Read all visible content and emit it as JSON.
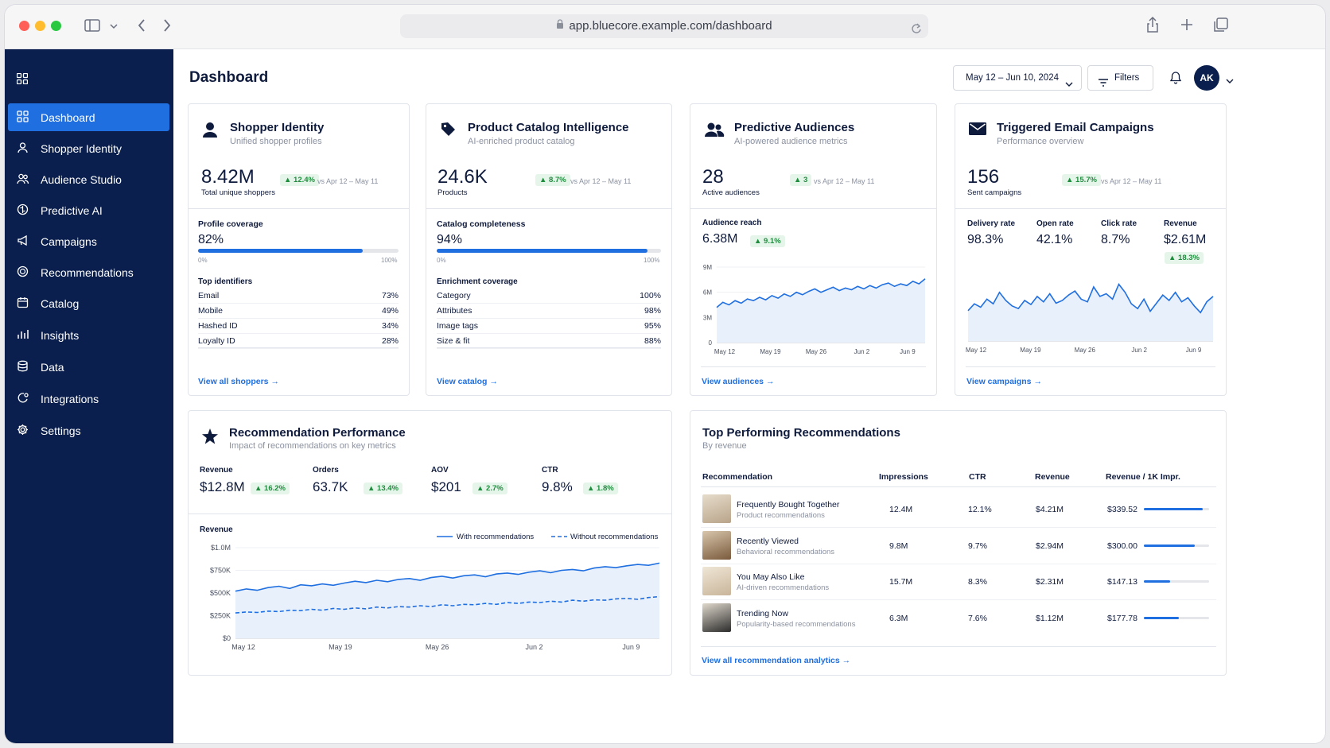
{
  "browser": {
    "url": "app.bluecore.example.com/dashboard"
  },
  "sidebar": {
    "items": [
      {
        "label": "Dashboard",
        "icon": "grid-icon"
      },
      {
        "label": "Shopper Identity",
        "icon": "user-icon"
      },
      {
        "label": "Audience Studio",
        "icon": "users-icon"
      },
      {
        "label": "Predictive AI",
        "icon": "brain-icon"
      },
      {
        "label": "Campaigns",
        "icon": "megaphone-icon"
      },
      {
        "label": "Recommendations",
        "icon": "star-badge-icon"
      },
      {
        "label": "Catalog",
        "icon": "calendar-icon"
      },
      {
        "label": "Insights",
        "icon": "bar-chart-icon"
      },
      {
        "label": "Data",
        "icon": "database-icon"
      },
      {
        "label": "Integrations",
        "icon": "integration-icon"
      },
      {
        "label": "Settings",
        "icon": "gear-icon"
      }
    ]
  },
  "header": {
    "title": "Dashboard",
    "date_range": "May 12 – Jun 10, 2024",
    "filters_label": "Filters",
    "avatar_initials": "AK"
  },
  "colors": {
    "accent": "#1f6fe0",
    "sidebar": "#0a1f4d",
    "positive": "#1e8e3e"
  },
  "shopper_identity": {
    "title": "Shopper Identity",
    "subtitle": "Unified shopper profiles",
    "value": "8.42M",
    "value_label": "Total unique shoppers",
    "change": "▲ 12.4%",
    "compare": "vs Apr 12 – May 11",
    "coverage_label": "Profile coverage",
    "coverage_value": "82%",
    "coverage_fraction": 0.82,
    "range_min": "0%",
    "range_max": "100%",
    "list_title": "Top identifiers",
    "rows": [
      {
        "label": "Email",
        "value": "73%"
      },
      {
        "label": "Mobile",
        "value": "49%"
      },
      {
        "label": "Hashed ID",
        "value": "34%"
      },
      {
        "label": "Loyalty ID",
        "value": "28%"
      }
    ],
    "link": "View all shoppers"
  },
  "catalog": {
    "title": "Product Catalog Intelligence",
    "subtitle": "AI-enriched product catalog",
    "value": "24.6K",
    "value_label": "Products",
    "change": "▲ 8.7%",
    "compare": "vs Apr 12 – May 11",
    "coverage_label": "Catalog completeness",
    "coverage_value": "94%",
    "coverage_fraction": 0.94,
    "range_min": "0%",
    "range_max": "100%",
    "list_title": "Enrichment coverage",
    "rows": [
      {
        "label": "Category",
        "value": "100%"
      },
      {
        "label": "Attributes",
        "value": "98%"
      },
      {
        "label": "Image tags",
        "value": "95%"
      },
      {
        "label": "Size & fit",
        "value": "88%"
      }
    ],
    "link": "View catalog"
  },
  "audiences": {
    "title": "Predictive Audiences",
    "subtitle": "AI-powered audience metrics",
    "value": "28",
    "value_label": "Active audiences",
    "change": "▲ 3",
    "compare": "vs Apr 12 – May 11",
    "reach_label": "Audience reach",
    "reach_value": "6.38M",
    "reach_change": "▲ 9.1%",
    "link": "View audiences"
  },
  "email": {
    "title": "Triggered Email Campaigns",
    "subtitle": "Performance overview",
    "value": "156",
    "value_label": "Sent campaigns",
    "change": "▲ 15.7%",
    "compare": "vs Apr 12 – May 11",
    "metrics": [
      {
        "label": "Delivery rate",
        "value": "98.3%"
      },
      {
        "label": "Open rate",
        "value": "42.1%"
      },
      {
        "label": "Click rate",
        "value": "8.7%"
      },
      {
        "label": "Revenue",
        "value": "$2.61M"
      }
    ],
    "revenue_change": "▲ 18.3%",
    "link": "View campaigns"
  },
  "rec_perf": {
    "title": "Recommendation Performance",
    "subtitle": "Impact of recommendations on key metrics",
    "metrics": [
      {
        "label": "Revenue",
        "value": "$12.8M",
        "change": "▲ 16.2%"
      },
      {
        "label": "Orders",
        "value": "63.7K",
        "change": "▲ 13.4%"
      },
      {
        "label": "AOV",
        "value": "$201",
        "change": "▲ 2.7%"
      },
      {
        "label": "CTR",
        "value": "9.8%",
        "change": "▲ 1.8%"
      }
    ]
  },
  "top_recs": {
    "title": "Top Performing Recommendations",
    "subtitle": "By revenue",
    "columns": [
      "Recommendation",
      "Impressions",
      "CTR",
      "Revenue",
      "Revenue / 1K Impr."
    ],
    "rows": [
      {
        "name": "Frequently Bought Together",
        "desc": "Product recommendations",
        "impressions": "12.4M",
        "ctr": "12.1%",
        "revenue": "$4.21M",
        "rev_per_1k": "$339.52",
        "bar_fraction": 0.9
      },
      {
        "name": "Recently Viewed",
        "desc": "Behavioral recommendations",
        "impressions": "9.8M",
        "ctr": "9.7%",
        "revenue": "$2.94M",
        "rev_per_1k": "$300.00",
        "bar_fraction": 0.78
      },
      {
        "name": "You May Also Like",
        "desc": "AI-driven recommendations",
        "impressions": "15.7M",
        "ctr": "8.3%",
        "revenue": "$2.31M",
        "rev_per_1k": "$147.13",
        "bar_fraction": 0.4
      },
      {
        "name": "Trending Now",
        "desc": "Popularity-based recommendations",
        "impressions": "6.3M",
        "ctr": "7.6%",
        "revenue": "$1.12M",
        "rev_per_1k": "$177.78",
        "bar_fraction": 0.54
      }
    ],
    "link": "View all recommendation analytics"
  },
  "chart_data": [
    {
      "type": "area",
      "ylabel": "",
      "xlabel": "",
      "x_ticks": [
        "May 12",
        "May 19",
        "May 26",
        "Jun 2",
        "Jun 9"
      ],
      "y_ticks": [
        "0",
        "3M",
        "6M",
        "9M"
      ],
      "ylim": [
        0,
        9
      ],
      "series": [
        {
          "values": [
            4.2,
            4.8,
            4.5,
            5.0,
            4.7,
            5.2,
            5.0,
            5.4,
            5.1,
            5.6,
            5.3,
            5.8,
            5.5,
            6.0,
            5.7,
            6.1,
            6.4,
            6.0,
            6.3,
            6.6,
            6.2,
            6.5,
            6.3,
            6.7,
            6.4,
            6.8,
            6.5,
            6.9,
            7.1,
            6.7,
            7.0,
            6.8,
            7.3,
            7.0,
            7.6
          ]
        }
      ]
    },
    {
      "type": "area",
      "xlabel": "",
      "ylabel": "",
      "x_ticks": [
        "May 12",
        "May 19",
        "May 26",
        "Jun 2",
        "Jun 9"
      ],
      "ylim": [
        0,
        1
      ],
      "series": [
        {
          "values": [
            0.45,
            0.55,
            0.5,
            0.62,
            0.55,
            0.72,
            0.6,
            0.52,
            0.48,
            0.6,
            0.54,
            0.66,
            0.58,
            0.7,
            0.56,
            0.6,
            0.68,
            0.74,
            0.62,
            0.58,
            0.8,
            0.66,
            0.7,
            0.62,
            0.84,
            0.72,
            0.55,
            0.48,
            0.62,
            0.44,
            0.56,
            0.68,
            0.6,
            0.72,
            0.58,
            0.64,
            0.52,
            0.42,
            0.58,
            0.66
          ]
        }
      ]
    },
    {
      "type": "area",
      "title": "Revenue",
      "x_ticks": [
        "May 12",
        "May 19",
        "May 26",
        "Jun 2",
        "Jun 9"
      ],
      "y_ticks": [
        "$0",
        "$250K",
        "$500K",
        "$750K",
        "$1.0M"
      ],
      "ylim": [
        0,
        1000
      ],
      "legend": "top-right",
      "series": [
        {
          "name": "With recommendations",
          "values": [
            520,
            545,
            530,
            560,
            575,
            550,
            590,
            580,
            600,
            585,
            610,
            630,
            615,
            640,
            625,
            650,
            660,
            640,
            670,
            685,
            665,
            690,
            700,
            680,
            710,
            720,
            705,
            730,
            745,
            725,
            750,
            760,
            745,
            775,
            790,
            780,
            800,
            815,
            805,
            830
          ]
        },
        {
          "name": "Without recommendations",
          "values": [
            280,
            290,
            285,
            300,
            295,
            310,
            305,
            320,
            310,
            330,
            320,
            335,
            325,
            345,
            335,
            350,
            345,
            360,
            350,
            370,
            360,
            375,
            370,
            385,
            375,
            395,
            385,
            400,
            395,
            410,
            400,
            420,
            410,
            425,
            420,
            435,
            440,
            430,
            450,
            460
          ]
        }
      ]
    }
  ]
}
